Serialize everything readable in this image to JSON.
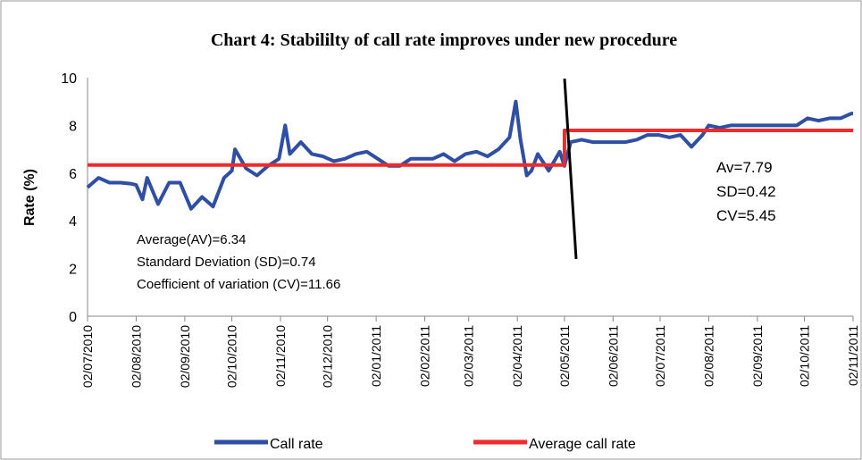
{
  "chart_data": {
    "type": "line",
    "title": "Chart 4: Stabililty of call rate improves under new procedure",
    "y_label": "Rate (%)",
    "ylim": [
      0,
      10
    ],
    "yticks": [
      0,
      2,
      4,
      6,
      8,
      10
    ],
    "xlim": [
      "02/07/2010",
      "02/11/2011"
    ],
    "xticks": [
      "02/07/2010",
      "02/08/2010",
      "02/09/2010",
      "02/10/2010",
      "02/11/2010",
      "02/12/2010",
      "02/01/2011",
      "02/02/2011",
      "02/03/2011",
      "02/04/2011",
      "02/05/2011",
      "02/06/2011",
      "02/07/2011",
      "02/08/2011",
      "02/09/2011",
      "02/10/2011",
      "02/11/2011"
    ],
    "annotations": [
      "Average(AV)=6.34",
      "Standard Deviation (SD)=0.74",
      "Coefficient of variation (CV)=11.66",
      "Av=7.79",
      "SD=0.42",
      "CV=5.45"
    ],
    "series": [
      {
        "name": "Call rate",
        "color": "#2e4fa3",
        "x": [
          "02/07/2010",
          "09/07/2010",
          "16/07/2010",
          "23/07/2010",
          "30/07/2010",
          "02/08/2010",
          "06/08/2010",
          "09/08/2010",
          "16/08/2010",
          "23/08/2010",
          "30/08/2010",
          "06/09/2010",
          "13/09/2010",
          "20/09/2010",
          "27/09/2010",
          "02/10/2010",
          "04/10/2010",
          "11/10/2010",
          "18/10/2010",
          "25/10/2010",
          "01/11/2010",
          "05/11/2010",
          "08/11/2010",
          "15/11/2010",
          "22/11/2010",
          "29/11/2010",
          "06/12/2010",
          "13/12/2010",
          "20/12/2010",
          "27/12/2010",
          "03/01/2011",
          "10/01/2011",
          "17/01/2011",
          "24/01/2011",
          "31/01/2011",
          "07/02/2011",
          "14/02/2011",
          "21/02/2011",
          "28/02/2011",
          "07/03/2011",
          "14/03/2011",
          "21/03/2011",
          "28/03/2011",
          "01/04/2011",
          "04/04/2011",
          "08/04/2011",
          "11/04/2011",
          "15/04/2011",
          "22/04/2011",
          "29/04/2011",
          "02/05/2011",
          "06/05/2011",
          "13/05/2011",
          "20/05/2011",
          "27/05/2011",
          "03/06/2011",
          "10/06/2011",
          "17/06/2011",
          "24/06/2011",
          "01/07/2011",
          "08/07/2011",
          "15/07/2011",
          "22/07/2011",
          "29/07/2011",
          "02/08/2011",
          "09/08/2011",
          "16/08/2011",
          "23/08/2011",
          "30/08/2011",
          "06/09/2011",
          "13/09/2011",
          "20/09/2011",
          "27/09/2011",
          "04/10/2011",
          "11/10/2011",
          "18/10/2011",
          "25/10/2011",
          "01/11/2011",
          "02/11/2011"
        ],
        "values": [
          5.4,
          5.8,
          5.6,
          5.6,
          5.55,
          5.5,
          4.9,
          5.8,
          4.7,
          5.6,
          5.6,
          4.5,
          5.0,
          4.6,
          5.8,
          6.1,
          7.0,
          6.2,
          5.9,
          6.3,
          6.6,
          8.0,
          6.8,
          7.3,
          6.8,
          6.7,
          6.5,
          6.6,
          6.8,
          6.9,
          6.6,
          6.3,
          6.3,
          6.6,
          6.6,
          6.6,
          6.8,
          6.5,
          6.8,
          6.9,
          6.7,
          7.0,
          7.5,
          9.0,
          7.4,
          5.9,
          6.1,
          6.8,
          6.1,
          6.9,
          6.3,
          7.3,
          7.4,
          7.3,
          7.3,
          7.3,
          7.3,
          7.4,
          7.6,
          7.6,
          7.5,
          7.6,
          7.1,
          7.6,
          8.0,
          7.9,
          8.0,
          8.0,
          8.0,
          8.0,
          8.0,
          8.0,
          8.0,
          8.3,
          8.2,
          8.3,
          8.3,
          8.5,
          8.5
        ]
      },
      {
        "name": "Average call rate",
        "color": "#ee2a2a",
        "x": [
          "02/07/2010",
          "02/05/2011",
          "02/05/2011",
          "02/11/2011"
        ],
        "values": [
          6.34,
          6.34,
          7.79,
          7.79
        ]
      }
    ]
  }
}
